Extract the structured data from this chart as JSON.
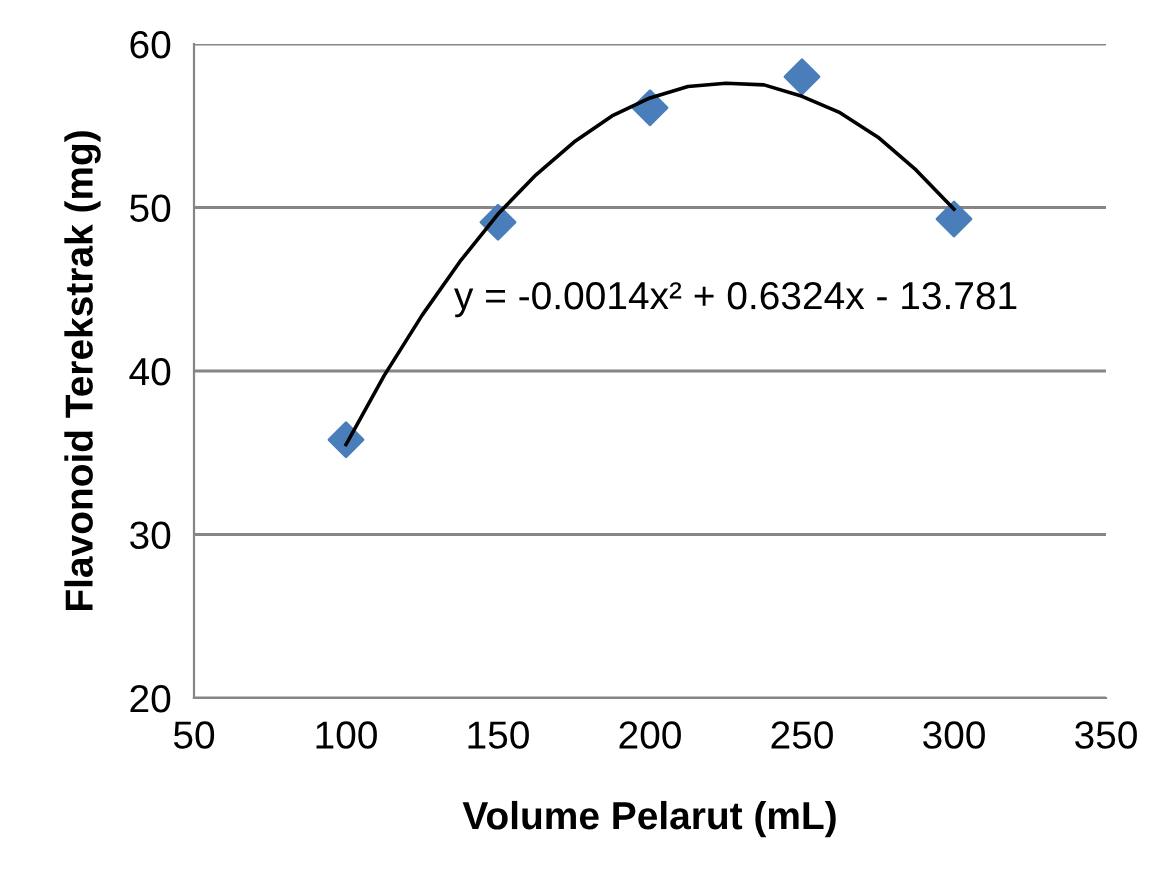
{
  "chart_data": {
    "type": "scatter",
    "xlabel": "Volume Pelarut (mL)",
    "ylabel": "Flavonoid Terekstrak (mg)",
    "series": [
      {
        "color": "#4a7ebb",
        "marker": "diamond",
        "x": [
          100,
          150,
          200,
          250,
          300
        ],
        "values": [
          35.8,
          49.1,
          56.1,
          58.0,
          49.3
        ]
      },
      {
        "type": "line",
        "color": "#000000",
        "marker": "none",
        "line_style": "solid",
        "x": [
          100,
          112.5,
          125,
          137.5,
          150,
          162.5,
          175,
          187.5,
          200,
          212.5,
          225,
          237.5,
          250,
          262.5,
          275,
          287.5,
          300
        ],
        "values": [
          35.5,
          39.7,
          43.4,
          46.7,
          49.6,
          52.0,
          54.0,
          55.6,
          56.7,
          57.4,
          57.6,
          57.5,
          56.8,
          55.8,
          54.3,
          52.3,
          49.9
        ]
      }
    ],
    "annotations": [
      "y = -0.0014x² + 0.6324x - 13.781"
    ],
    "xlim": [
      50,
      350
    ],
    "xticks": [
      50,
      100,
      150,
      200,
      250,
      300,
      350
    ],
    "ylim": [
      20,
      60
    ],
    "yticks": [
      20,
      30,
      40,
      50,
      60
    ],
    "grid": "y",
    "legend": false
  }
}
